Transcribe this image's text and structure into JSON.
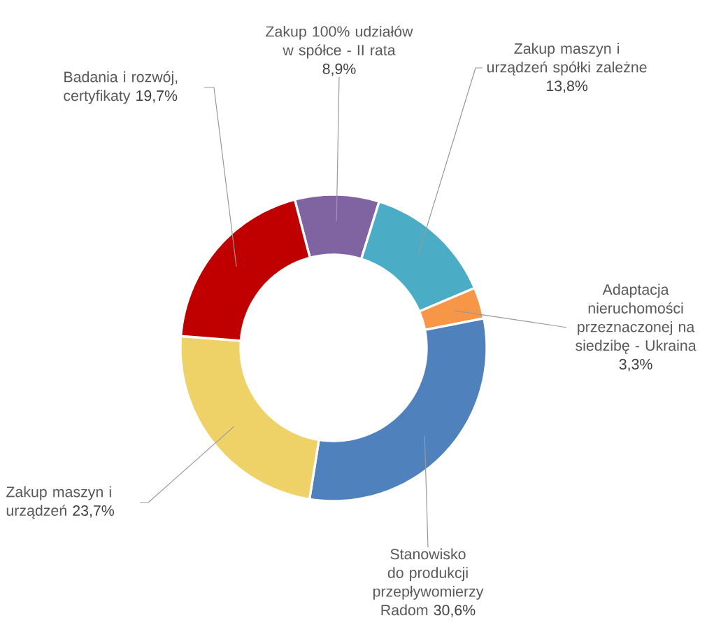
{
  "chart_data": {
    "type": "donut",
    "categories": [
      "Zakup 100% udziałów w spółce - II rata",
      "Zakup maszyn i urządzeń spółki zależne",
      "Adaptacja nieruchomości przeznaczonej na siedzibę - Ukraina",
      "Stanowisko do produkcji przepływomierzy Radom",
      "Zakup maszyn i urządzeń",
      "Badania i rozwój, certyfikaty"
    ],
    "values": [
      8.9,
      13.8,
      3.3,
      30.6,
      23.7,
      19.7
    ],
    "value_labels": [
      "8,9%",
      "13,8%",
      "3,3%",
      "30,6%",
      "23,7%",
      "19,7%"
    ],
    "colors": [
      "#8064a2",
      "#4bacc6",
      "#f79646",
      "#4f81bd",
      "#efd267",
      "#c00000"
    ]
  }
}
